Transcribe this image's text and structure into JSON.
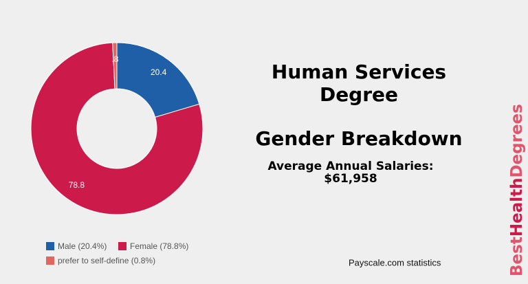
{
  "chart_data": {
    "type": "pie",
    "categories": [
      "Male (20.4%)",
      "Female (78.8%)",
      "prefer to self-define (0.8%)"
    ],
    "values": [
      20.4,
      78.8,
      0.8
    ],
    "value_labels": [
      "20.4",
      "78.8",
      ".8"
    ],
    "colors": [
      "#1f5fa8",
      "#cc1a4b",
      "#e0675e"
    ],
    "donut": true,
    "title": [
      "Human Services",
      "Degree"
    ],
    "subtitle": "Gender Breakdown",
    "annotations": [
      "Average Annual Salaries:",
      "$61,958"
    ]
  },
  "source": "Payscale.com  statistics",
  "brand": {
    "parts": [
      "Best",
      "Health",
      "Degrees"
    ],
    "colors": [
      "#e2546b",
      "#cc1a4b",
      "#e2546b"
    ]
  }
}
